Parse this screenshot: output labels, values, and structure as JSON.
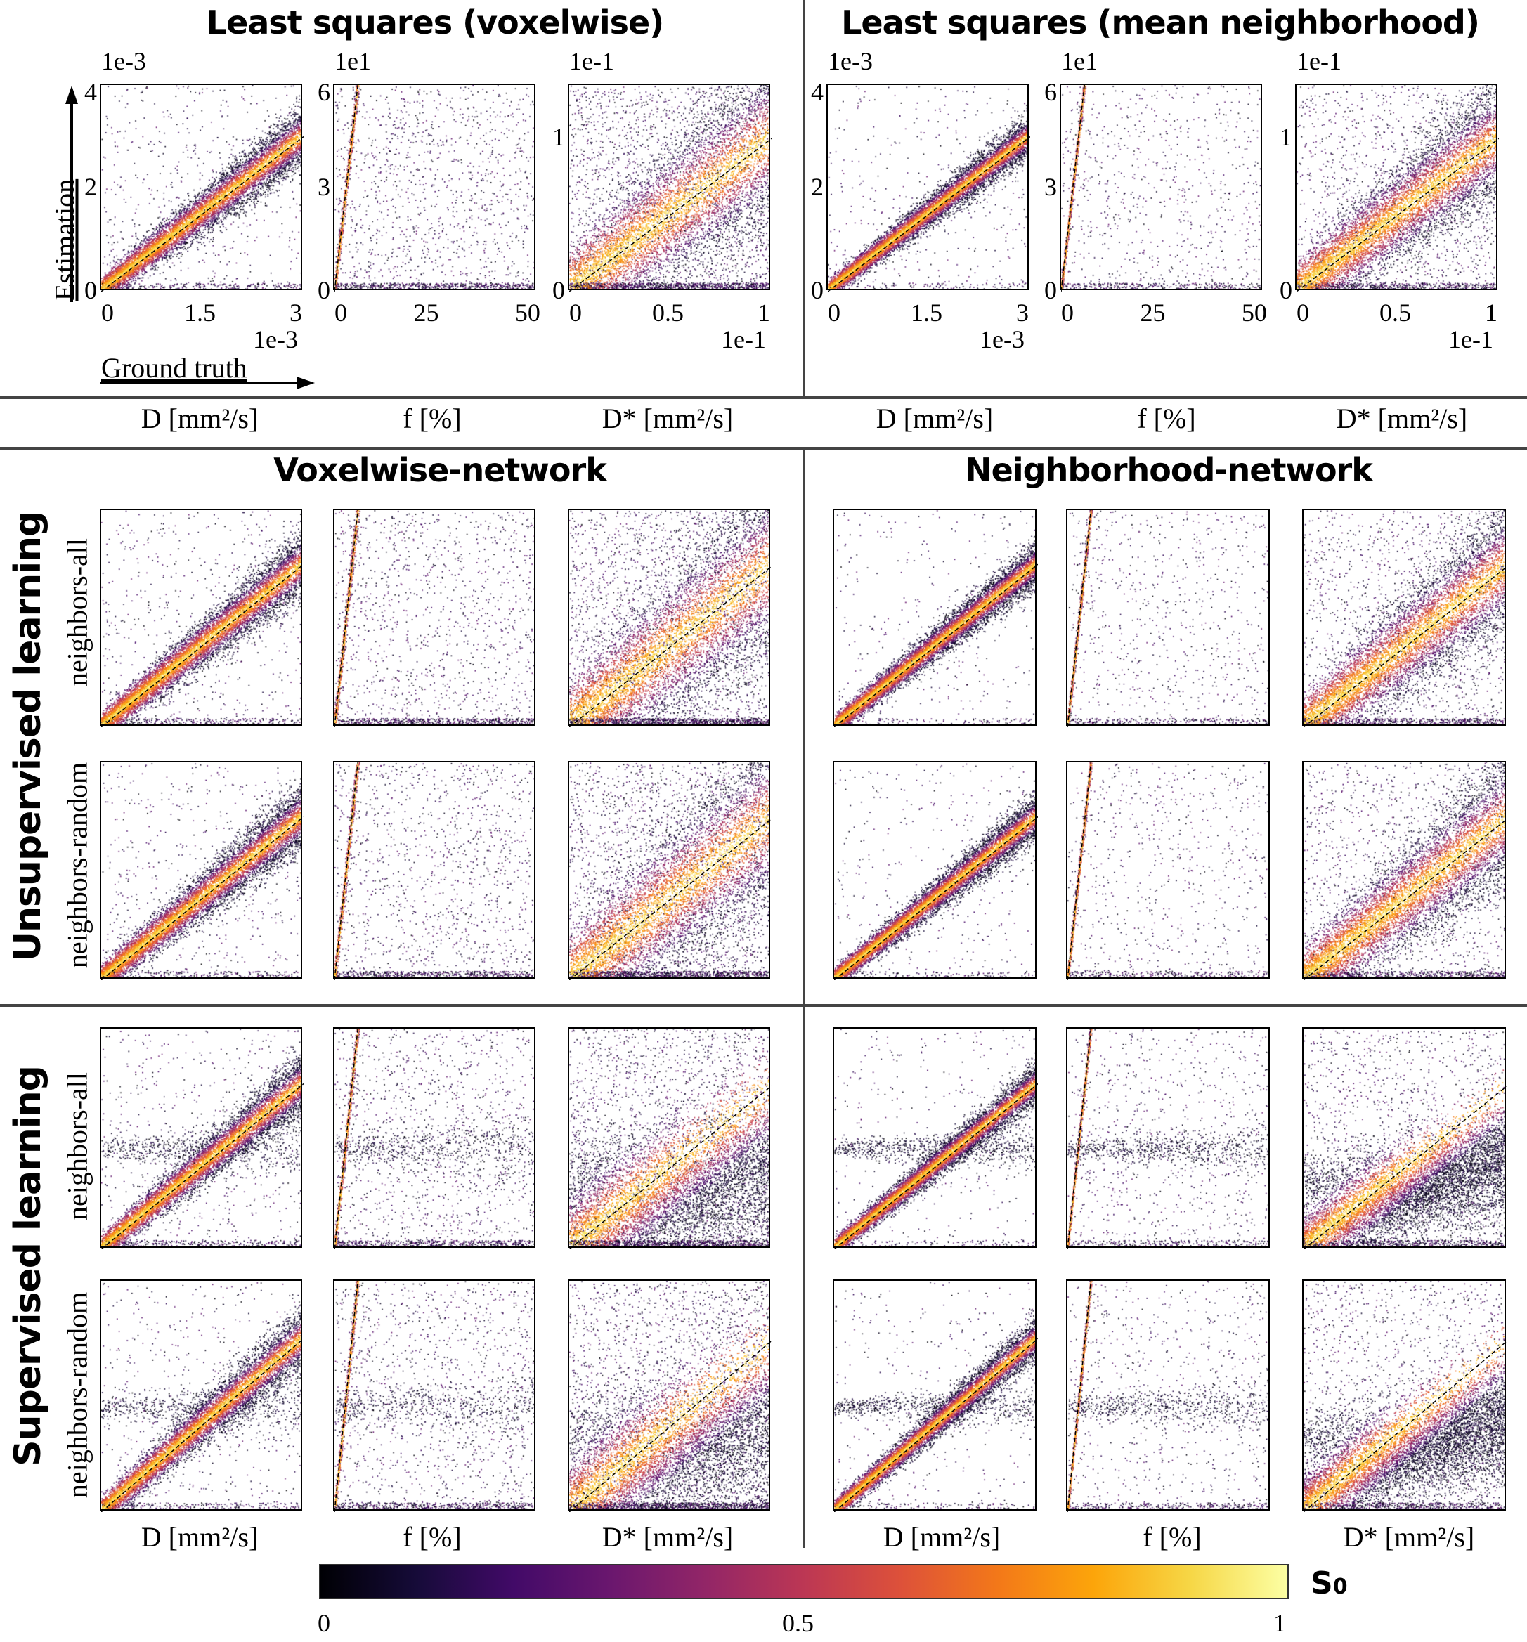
{
  "titles": {
    "ls_voxelwise": "Least squares (voxelwise)",
    "ls_neighborhood": "Least squares (mean neighborhood)",
    "voxelwise_network": "Voxelwise-network",
    "neighborhood_network": "Neighborhood-network"
  },
  "axis_hints": {
    "estimation": "Estimation",
    "ground_truth": "Ground truth"
  },
  "column_labels": [
    "D [mm²/s]",
    "f [%]",
    "D* [mm²/s]"
  ],
  "group_labels": {
    "unsupervised": "Unsupervised learning",
    "supervised": "Supervised learning"
  },
  "row_labels": {
    "all": "neighbors-all",
    "random": "neighbors-random"
  },
  "colorbar": {
    "label": "S",
    "label_sub": "0",
    "ticks": [
      "0",
      "0.5",
      "1"
    ],
    "colormap": "inferno",
    "range": [
      0,
      1
    ]
  },
  "chart_data": {
    "type": "scatter",
    "xlabel": "Ground truth",
    "ylabel": "Estimation",
    "color_variable": "S0",
    "parameters": [
      {
        "name": "D",
        "unit_label": "D [mm²/s]",
        "scale": "1e-3",
        "xlim": [
          0,
          3
        ],
        "ylim": [
          0,
          4
        ],
        "xticks": [
          "0",
          "1.5",
          "3"
        ],
        "yticks": [
          "0",
          "2",
          "4"
        ],
        "yticks_values": [
          0,
          2,
          4
        ],
        "xticks_values": [
          0,
          1.5,
          3
        ]
      },
      {
        "name": "f",
        "unit_label": "f [%]",
        "scale": "1e1",
        "xlim": [
          0,
          52
        ],
        "ylim": [
          0,
          6
        ],
        "xticks": [
          "0",
          "25",
          "50"
        ],
        "yticks": [
          "0",
          "3",
          "6"
        ],
        "yticks_values": [
          0,
          3,
          6
        ],
        "xticks_values": [
          0,
          25,
          50
        ]
      },
      {
        "name": "D*",
        "unit_label": "D* [mm²/s]",
        "scale": "1e-1",
        "xlim": [
          0,
          1
        ],
        "ylim": [
          0,
          1.35
        ],
        "xticks": [
          "0",
          "0.5",
          "1"
        ],
        "yticks": [
          "0",
          "1"
        ],
        "yticks_values": [
          0,
          1
        ],
        "xticks_values": [
          0,
          0.5,
          1
        ]
      }
    ],
    "panel_groups": [
      {
        "method": "Least squares (voxelwise)",
        "rows": [
          "fit"
        ]
      },
      {
        "method": "Least squares (mean neighborhood)",
        "rows": [
          "fit"
        ]
      },
      {
        "method": "Voxelwise-network",
        "rows": [
          "unsupervised neighbors-all",
          "unsupervised neighbors-random",
          "supervised neighbors-all",
          "supervised neighbors-random"
        ]
      },
      {
        "method": "Neighborhood-network",
        "rows": [
          "unsupervised neighbors-all",
          "unsupervised neighbors-random",
          "supervised neighbors-all",
          "supervised neighbors-random"
        ]
      }
    ],
    "reference_line": "identity (dashed)"
  }
}
